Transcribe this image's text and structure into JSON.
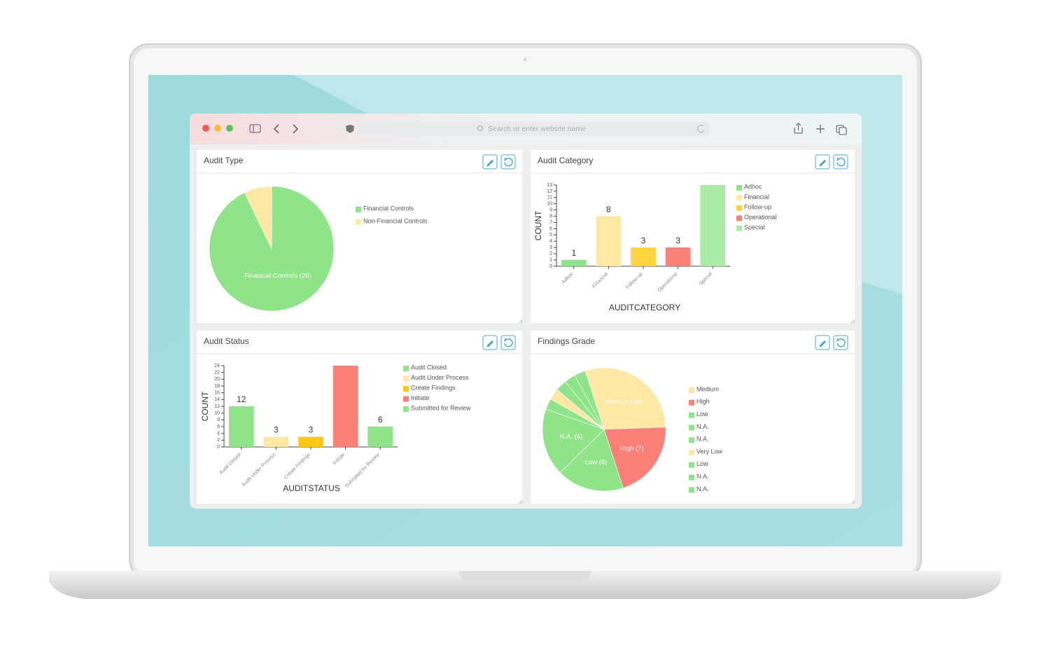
{
  "browser": {
    "address_placeholder": "Search or enter website name"
  },
  "chart_data": [
    {
      "type": "pie",
      "title": "Audit Type",
      "categories": [
        "Financial Controls",
        "Non-Financial Controls"
      ],
      "values": [
        26,
        2
      ],
      "value_labels": [
        "Financial Controls (26)",
        null
      ],
      "colors": [
        "#8fe388",
        "#ffe8a3"
      ],
      "legend": true
    },
    {
      "type": "bar",
      "title": "Audit Category",
      "categories": [
        "Adhoc",
        "Financial",
        "Follow-up",
        "Operational",
        "Special"
      ],
      "values": [
        1,
        8,
        3,
        3,
        13
      ],
      "value_labels": [
        "1",
        "8",
        "3",
        "3",
        null
      ],
      "colors": [
        "#8fe388",
        "#ffe8a3",
        "#ffd43f",
        "#fa8078",
        "#a8eaa6"
      ],
      "ylim": [
        0,
        13
      ],
      "yticks": [
        0,
        1,
        2,
        3,
        4,
        5,
        6,
        7,
        8,
        9,
        10,
        11,
        12,
        13
      ],
      "y_label": "COUNT",
      "x_label": "AUDITCATEGORY",
      "legend": true
    },
    {
      "type": "bar",
      "title": "Audit Status",
      "categories": [
        "Audit Closed",
        "Audit Under Process",
        "Create Findings",
        "Initiate",
        "Submitted for Review"
      ],
      "values": [
        12,
        3,
        3,
        24,
        6
      ],
      "value_labels": [
        "12",
        "3",
        "3",
        null,
        "6"
      ],
      "colors": [
        "#8fe388",
        "#ffe8a3",
        "#ffc61a",
        "#fa8078",
        "#8fe388"
      ],
      "ylim": [
        0,
        24
      ],
      "yticks": [
        0,
        2,
        4,
        6,
        8,
        10,
        12,
        14,
        16,
        18,
        20,
        22,
        24
      ],
      "y_label": "COUNT",
      "x_label": "AUDITSTATUS",
      "legend": true
    },
    {
      "type": "pie",
      "title": "Findings Grade",
      "categories": [
        "Medium",
        "High",
        "Low",
        "N.A.",
        "N.A.",
        "Very Low",
        "Low",
        "N.A.",
        "N.A."
      ],
      "values": [
        10,
        7,
        6,
        6,
        1,
        1,
        1,
        1,
        1
      ],
      "value_labels": [
        "Medium (10)",
        "High (7)",
        "Low (6)",
        "N.A. (6)",
        null,
        null,
        null,
        null,
        null
      ],
      "colors": [
        "#ffe8a3",
        "#fa8078",
        "#8fe388",
        "#8fe388",
        "#8fe388",
        "#ffe8a3",
        "#8fe388",
        "#8fe388",
        "#8fe388"
      ],
      "legend": true
    }
  ]
}
